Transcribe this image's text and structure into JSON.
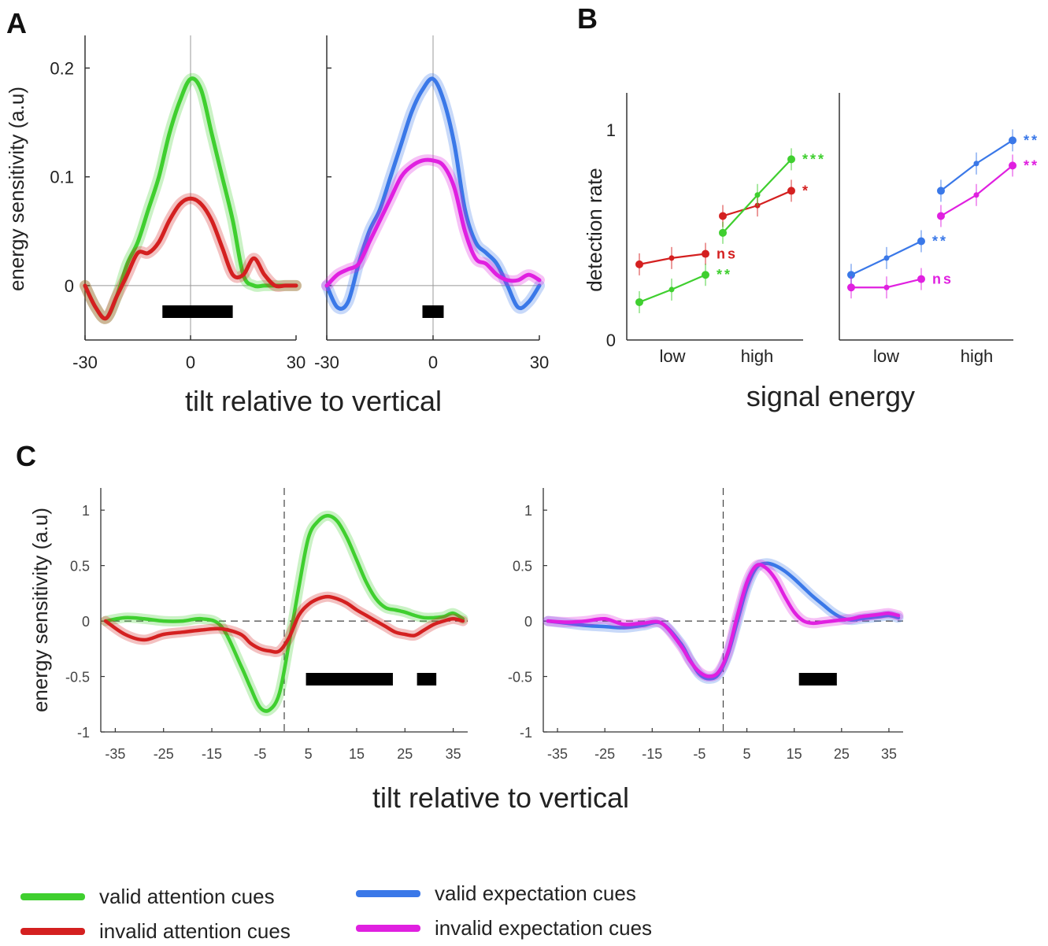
{
  "panels": {
    "A": "A",
    "B": "B",
    "C": "C"
  },
  "colors": {
    "valid_attention": "#3fcf2f",
    "invalid_attention": "#d42020",
    "valid_expectation": "#3a78e8",
    "invalid_expectation": "#e020e0"
  },
  "legend": [
    {
      "label": "valid attention cues",
      "color": "#3fcf2f"
    },
    {
      "label": "invalid attention cues",
      "color": "#d42020"
    },
    {
      "label": "valid expectation cues",
      "color": "#3a78e8"
    },
    {
      "label": "invalid expectation cues",
      "color": "#e020e0"
    }
  ],
  "chart_data": [
    {
      "panel": "A-left",
      "type": "line",
      "xlabel": "tilt relative to vertical",
      "ylabel": "energy sensitivity (a.u)",
      "xlim": [
        -30,
        30
      ],
      "ylim": [
        -0.05,
        0.23
      ],
      "xticks": [
        "-30",
        "0",
        "30"
      ],
      "yticks": [
        "0",
        "0.1",
        "0.2"
      ],
      "series": [
        {
          "color": "#3fcf2f",
          "x": [
            -30,
            -27,
            -24,
            -21,
            -18,
            -15,
            -12,
            -9,
            -6,
            -3,
            0,
            3,
            6,
            9,
            12,
            15,
            18,
            21,
            24,
            27,
            30
          ],
          "y": [
            0,
            -0.02,
            -0.03,
            -0.01,
            0.02,
            0.04,
            0.07,
            0.1,
            0.14,
            0.17,
            0.19,
            0.18,
            0.14,
            0.1,
            0.06,
            0.01,
            0,
            0,
            0,
            0,
            0
          ]
        },
        {
          "color": "#d42020",
          "x": [
            -30,
            -27,
            -24,
            -21,
            -18,
            -15,
            -12,
            -9,
            -6,
            -3,
            0,
            3,
            6,
            9,
            12,
            15,
            18,
            21,
            24,
            27,
            30
          ],
          "y": [
            0,
            -0.02,
            -0.03,
            -0.01,
            0.01,
            0.03,
            0.03,
            0.04,
            0.06,
            0.075,
            0.08,
            0.075,
            0.06,
            0.035,
            0.01,
            0.01,
            0.025,
            0.01,
            0,
            0,
            0
          ]
        }
      ],
      "significance_bar": [
        -8,
        12
      ]
    },
    {
      "panel": "A-right",
      "type": "line",
      "xlim": [
        -30,
        30
      ],
      "ylim": [
        -0.05,
        0.23
      ],
      "xticks": [
        "-30",
        "0",
        "30"
      ],
      "series": [
        {
          "color": "#3a78e8",
          "x": [
            -30,
            -27,
            -24,
            -21,
            -18,
            -15,
            -12,
            -9,
            -6,
            -3,
            0,
            3,
            6,
            9,
            12,
            15,
            18,
            21,
            24,
            27,
            30
          ],
          "y": [
            0,
            -0.02,
            -0.015,
            0.02,
            0.05,
            0.07,
            0.1,
            0.13,
            0.16,
            0.18,
            0.19,
            0.17,
            0.13,
            0.07,
            0.04,
            0.03,
            0.02,
            0,
            -0.02,
            -0.015,
            0
          ]
        },
        {
          "color": "#e020e0",
          "x": [
            -30,
            -27,
            -24,
            -21,
            -18,
            -15,
            -12,
            -9,
            -6,
            -3,
            0,
            3,
            6,
            9,
            12,
            15,
            18,
            21,
            24,
            27,
            30
          ],
          "y": [
            0,
            0.01,
            0.015,
            0.02,
            0.04,
            0.06,
            0.08,
            0.1,
            0.11,
            0.115,
            0.115,
            0.11,
            0.09,
            0.05,
            0.025,
            0.02,
            0.01,
            0.005,
            0.005,
            0.01,
            0.005
          ]
        }
      ],
      "significance_bar": [
        -3,
        3
      ]
    },
    {
      "panel": "B-left",
      "type": "line",
      "xlabel": "signal energy",
      "ylabel": "detection rate",
      "ylim": [
        0,
        1.15
      ],
      "yticks": [
        "0",
        "1"
      ],
      "group_labels": [
        "low",
        "high"
      ],
      "series": [
        {
          "color": "#d42020",
          "low": [
            0.36,
            0.39,
            0.41
          ],
          "high": [
            0.59,
            0.64,
            0.71
          ],
          "low_sig": "ns",
          "high_sig": "*"
        },
        {
          "color": "#3fcf2f",
          "low": [
            0.18,
            0.24,
            0.31
          ],
          "high": [
            0.51,
            0.69,
            0.86
          ],
          "low_sig": "**",
          "high_sig": "***"
        }
      ]
    },
    {
      "panel": "B-right",
      "type": "line",
      "ylim": [
        0,
        1.15
      ],
      "group_labels": [
        "low",
        "high"
      ],
      "series": [
        {
          "color": "#3a78e8",
          "low": [
            0.31,
            0.39,
            0.47
          ],
          "high": [
            0.71,
            0.84,
            0.95
          ],
          "low_sig": "**",
          "high_sig": "**"
        },
        {
          "color": "#e020e0",
          "low": [
            0.25,
            0.25,
            0.29
          ],
          "high": [
            0.59,
            0.69,
            0.83
          ],
          "low_sig": "ns",
          "high_sig": "**"
        }
      ]
    },
    {
      "panel": "C-left",
      "type": "line",
      "xlabel": "tilt relative to vertical",
      "ylabel": "energy sensitivity (a.u)",
      "xlim": [
        -38,
        38
      ],
      "ylim": [
        -1,
        1.2
      ],
      "xticks": [
        "-35",
        "-25",
        "-15",
        "-5",
        "5",
        "15",
        "25",
        "35"
      ],
      "yticks": [
        "-1",
        "-0.5",
        "0",
        "0.5",
        "1"
      ],
      "series": [
        {
          "color": "#3fcf2f",
          "x": [
            -37,
            -33,
            -29,
            -25,
            -21,
            -17,
            -13,
            -9,
            -7,
            -5,
            -3,
            -1,
            1,
            3,
            5,
            7,
            9,
            11,
            13,
            15,
            17,
            19,
            21,
            23,
            25,
            27,
            29,
            31,
            33,
            35,
            37
          ],
          "y": [
            0,
            0.03,
            0.02,
            0,
            0,
            0.02,
            -0.05,
            -0.4,
            -0.6,
            -0.78,
            -0.8,
            -0.65,
            -0.2,
            0.3,
            0.75,
            0.9,
            0.95,
            0.9,
            0.75,
            0.55,
            0.35,
            0.2,
            0.12,
            0.1,
            0.08,
            0.05,
            0.03,
            0.03,
            0.04,
            0.07,
            0.02
          ]
        },
        {
          "color": "#d42020",
          "x": [
            -37,
            -33,
            -29,
            -25,
            -21,
            -17,
            -13,
            -9,
            -7,
            -5,
            -3,
            -1,
            1,
            3,
            5,
            7,
            9,
            11,
            13,
            15,
            17,
            19,
            21,
            23,
            25,
            27,
            29,
            31,
            33,
            35,
            37
          ],
          "y": [
            0,
            -0.12,
            -0.17,
            -0.12,
            -0.1,
            -0.08,
            -0.07,
            -0.12,
            -0.2,
            -0.25,
            -0.27,
            -0.27,
            -0.15,
            0.05,
            0.15,
            0.2,
            0.22,
            0.2,
            0.16,
            0.1,
            0.05,
            0,
            -0.05,
            -0.1,
            -0.12,
            -0.13,
            -0.08,
            -0.03,
            0,
            0.02,
            0
          ]
        }
      ],
      "significance_bars": [
        [
          4.5,
          22.5
        ],
        [
          27.5,
          31.5
        ]
      ]
    },
    {
      "panel": "C-right",
      "type": "line",
      "xlim": [
        -38,
        38
      ],
      "ylim": [
        -1,
        1.2
      ],
      "xticks": [
        "-35",
        "-25",
        "-15",
        "-5",
        "5",
        "15",
        "25",
        "35"
      ],
      "yticks": [
        "-1",
        "-0.5",
        "0",
        "0.5",
        "1"
      ],
      "series": [
        {
          "color": "#3a78e8",
          "x": [
            -37,
            -33,
            -29,
            -25,
            -21,
            -17,
            -13,
            -9,
            -7,
            -5,
            -3,
            -1,
            1,
            3,
            5,
            7,
            9,
            11,
            13,
            15,
            17,
            19,
            21,
            23,
            25,
            27,
            29,
            31,
            33,
            35,
            37
          ],
          "y": [
            0,
            -0.02,
            -0.04,
            -0.05,
            -0.06,
            -0.04,
            -0.02,
            -0.2,
            -0.35,
            -0.48,
            -0.52,
            -0.48,
            -0.3,
            0,
            0.3,
            0.48,
            0.52,
            0.5,
            0.45,
            0.38,
            0.3,
            0.22,
            0.15,
            0.08,
            0.03,
            0.01,
            0.02,
            0.03,
            0.04,
            0.05,
            0.03
          ]
        },
        {
          "color": "#e020e0",
          "x": [
            -37,
            -33,
            -29,
            -25,
            -21,
            -17,
            -13,
            -9,
            -7,
            -5,
            -3,
            -1,
            1,
            3,
            5,
            7,
            9,
            11,
            13,
            15,
            17,
            19,
            21,
            23,
            25,
            27,
            29,
            31,
            33,
            35,
            37
          ],
          "y": [
            0,
            -0.01,
            0,
            0.02,
            -0.03,
            -0.02,
            -0.02,
            -0.22,
            -0.36,
            -0.46,
            -0.5,
            -0.46,
            -0.28,
            0.05,
            0.35,
            0.5,
            0.48,
            0.38,
            0.22,
            0.08,
            0,
            -0.02,
            -0.01,
            0,
            0.01,
            0.02,
            0.04,
            0.05,
            0.06,
            0.07,
            0.05
          ]
        }
      ],
      "significance_bars": [
        [
          16,
          24
        ]
      ]
    }
  ]
}
